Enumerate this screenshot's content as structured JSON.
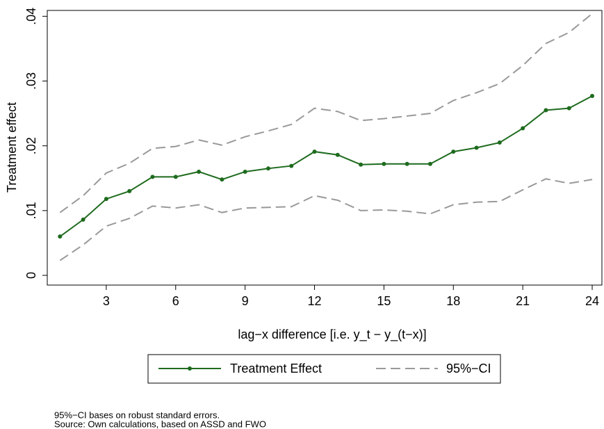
{
  "chart_data": {
    "type": "line",
    "x_label": "lag−x difference [i.e. y_t − y_(t−x)]",
    "y_label": "Treatment effect",
    "x": [
      1,
      2,
      3,
      4,
      5,
      6,
      7,
      8,
      9,
      10,
      11,
      12,
      13,
      14,
      15,
      16,
      17,
      18,
      19,
      20,
      21,
      22,
      23,
      24
    ],
    "series": [
      {
        "name": "Treatment Effect",
        "color": "#1e6b1e",
        "values": [
          0.006,
          0.0086,
          0.0118,
          0.013,
          0.0152,
          0.0152,
          0.016,
          0.0148,
          0.016,
          0.0165,
          0.0169,
          0.0191,
          0.0186,
          0.0171,
          0.0172,
          0.0172,
          0.0172,
          0.0191,
          0.0197,
          0.0205,
          0.0227,
          0.0255,
          0.0258,
          0.0277
        ]
      }
    ],
    "ci": {
      "name": "95%−CI",
      "color": "#999999",
      "upper": [
        0.0097,
        0.0123,
        0.0158,
        0.0173,
        0.0196,
        0.0199,
        0.0209,
        0.0201,
        0.0214,
        0.0223,
        0.0233,
        0.0258,
        0.0253,
        0.0239,
        0.0242,
        0.0246,
        0.025,
        0.027,
        0.0282,
        0.0296,
        0.0324,
        0.0358,
        0.0375,
        0.0404
      ],
      "lower": [
        0.0023,
        0.0047,
        0.0076,
        0.0088,
        0.0107,
        0.0104,
        0.0109,
        0.0097,
        0.0104,
        0.0105,
        0.0106,
        0.0123,
        0.0116,
        0.01,
        0.0101,
        0.0099,
        0.0095,
        0.0109,
        0.0113,
        0.0114,
        0.0132,
        0.0149,
        0.0142,
        0.0148
      ]
    },
    "xlim": [
      0.45,
      24.42
    ],
    "ylim": [
      -0.0015,
      0.0409
    ],
    "xticks": [
      3,
      6,
      9,
      12,
      15,
      18,
      21,
      24
    ],
    "yticks": [
      0,
      {
        "value": 0.01,
        "label": ".01"
      },
      {
        "value": 0.02,
        "label": ".02"
      },
      {
        "value": 0.03,
        "label": ".03"
      },
      {
        "value": 0.04,
        "label": ".04"
      }
    ],
    "notes": [
      "95%−CI bases on robust standard errors.",
      "Source: Own calculations, based on ASSD and FWO"
    ]
  }
}
